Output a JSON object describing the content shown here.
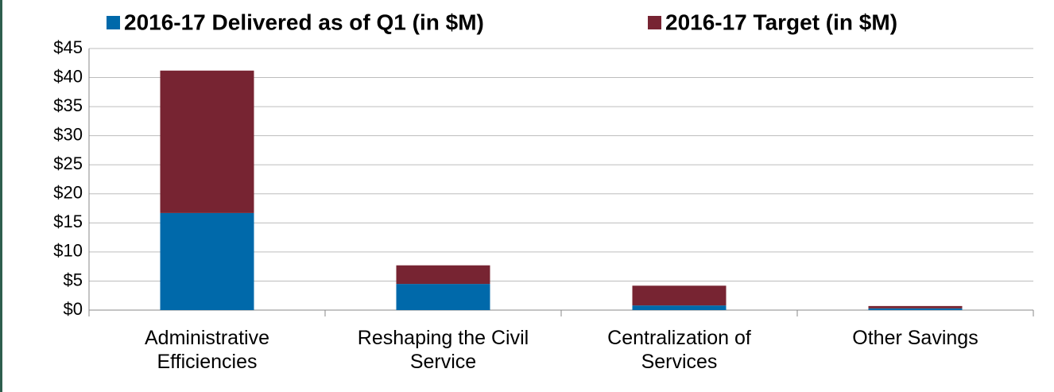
{
  "chart_data": {
    "type": "bar",
    "stacked": true,
    "categories": [
      "Administrative Efficiencies",
      "Reshaping the Civil Service",
      "Centralization of Services",
      "Other Savings"
    ],
    "series": [
      {
        "name": "2016-17 Delivered as of Q1 (in $M)",
        "color": "#0069aa",
        "values": [
          16.7,
          4.5,
          0.8,
          0.3
        ]
      },
      {
        "name": "2016-17 Target (in $M)",
        "color": "#772432",
        "values": [
          24.5,
          3.2,
          3.4,
          0.4
        ]
      }
    ],
    "ylim": [
      0,
      45
    ],
    "yticks": [
      {
        "value": 0,
        "label": "$0"
      },
      {
        "value": 5,
        "label": "$5"
      },
      {
        "value": 10,
        "label": "$10"
      },
      {
        "value": 15,
        "label": "$15"
      },
      {
        "value": 20,
        "label": "$20"
      },
      {
        "value": 25,
        "label": "$25"
      },
      {
        "value": 30,
        "label": "$30"
      },
      {
        "value": 35,
        "label": "$35"
      },
      {
        "value": 40,
        "label": "$40"
      },
      {
        "value": 45,
        "label": "$45"
      }
    ],
    "grid": true,
    "legend": "top"
  }
}
